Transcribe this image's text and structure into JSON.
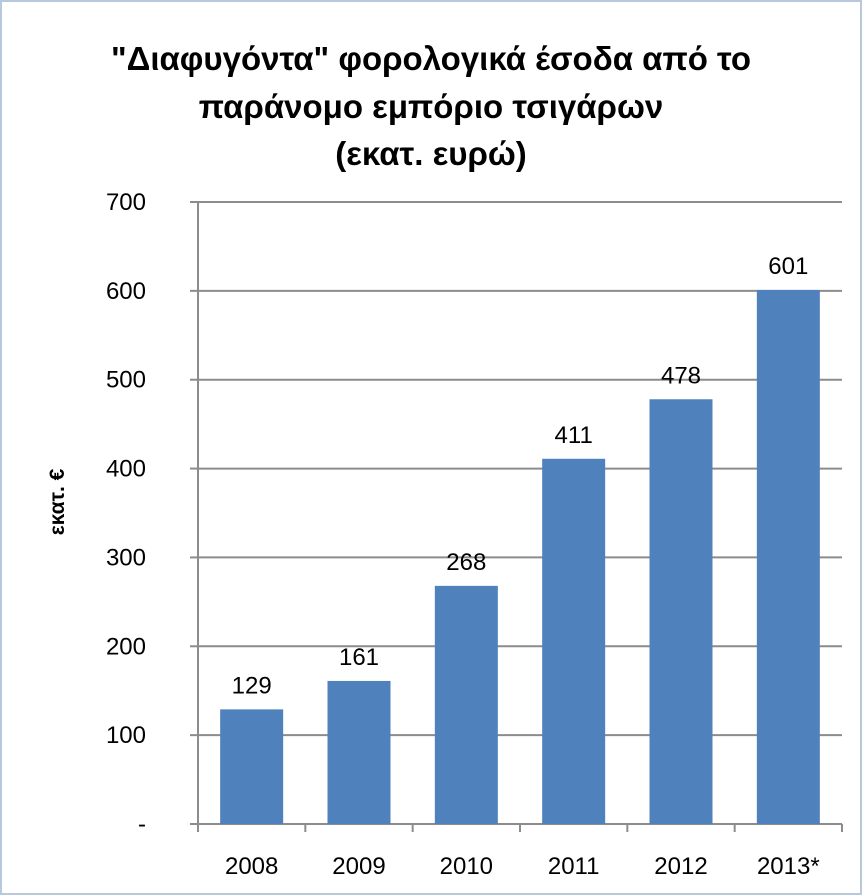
{
  "chart_data": {
    "type": "bar",
    "title_lines": [
      "\"Διαφυγόντα\" φορολογικά έσοδα από το",
      "παράνομο εμπόριο τσιγάρων",
      "(εκατ. ευρώ)"
    ],
    "title": "\"Διαφυγόντα\" φορολογικά έσοδα από το παράνομο εμπόριο τσιγάρων (εκατ. ευρώ)",
    "xlabel": "",
    "ylabel": "εκατ. €",
    "categories": [
      "2008",
      "2009",
      "2010",
      "2011",
      "2012",
      "2013*"
    ],
    "values": [
      129,
      161,
      268,
      411,
      478,
      601
    ],
    "data_labels": [
      "129",
      "161",
      "268",
      "411",
      "478",
      "601"
    ],
    "ylim": [
      0,
      700
    ],
    "yticks": [
      0,
      100,
      200,
      300,
      400,
      500,
      600,
      700
    ],
    "ytick_labels": [
      "-",
      "100",
      "200",
      "300",
      "400",
      "500",
      "600",
      "700"
    ],
    "grid": true,
    "legend": "none",
    "bar_color": "#4f81bd"
  }
}
